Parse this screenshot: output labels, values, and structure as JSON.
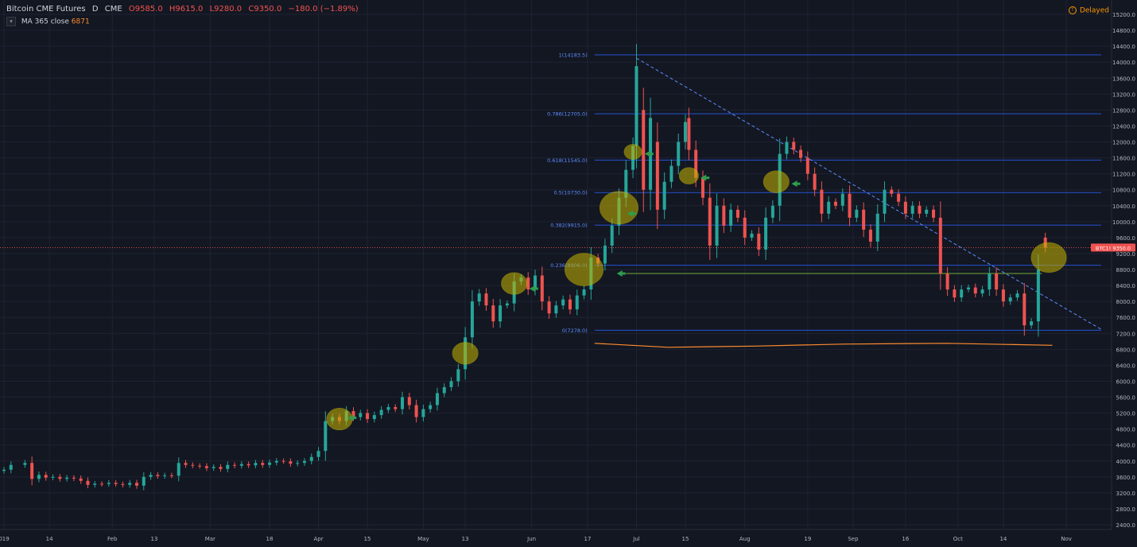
{
  "header": {
    "symbol": "Bitcoin CME Futures",
    "interval": "D",
    "exchange": "CME",
    "open": "O9585.0",
    "high": "H9615.0",
    "low": "L9280.0",
    "close": "C9350.0",
    "change": "−180.0 (−1.89%)"
  },
  "indicator": {
    "collapse_icon": "chevron-down",
    "name": "MA",
    "params": "365 close",
    "value": "6871"
  },
  "status": {
    "label": "Delayed",
    "icon": "info-icon"
  },
  "price_tag": {
    "symbol": "BTC1!",
    "value": "9350.0"
  },
  "chart_data": {
    "type": "candlestick",
    "title": "Bitcoin CME Futures",
    "ylim": [
      2200,
      15400
    ],
    "y_ticks": [
      2400,
      2800,
      3200,
      3600,
      4000,
      4400,
      4800,
      5200,
      5600,
      6000,
      6400,
      6800,
      7200,
      7600,
      8000,
      8400,
      8800,
      9200,
      9600,
      10000,
      10400,
      10800,
      11200,
      11600,
      12000,
      12400,
      12800,
      13200,
      13600,
      14000,
      14400,
      14800,
      15200
    ],
    "x_ticks": [
      {
        "label": "019",
        "day": 0
      },
      {
        "label": "14",
        "day": 13
      },
      {
        "label": "Feb",
        "day": 31
      },
      {
        "label": "13",
        "day": 43
      },
      {
        "label": "Mar",
        "day": 59
      },
      {
        "label": "18",
        "day": 76
      },
      {
        "label": "Apr",
        "day": 90
      },
      {
        "label": "15",
        "day": 104
      },
      {
        "label": "May",
        "day": 120
      },
      {
        "label": "13",
        "day": 132
      },
      {
        "label": "Jun",
        "day": 151
      },
      {
        "label": "17",
        "day": 167
      },
      {
        "label": "Jul",
        "day": 181
      },
      {
        "label": "15",
        "day": 195
      },
      {
        "label": "Aug",
        "day": 212
      },
      {
        "label": "19",
        "day": 230
      },
      {
        "label": "Sep",
        "day": 243
      },
      {
        "label": "16",
        "day": 258
      },
      {
        "label": "Oct",
        "day": 273
      },
      {
        "label": "14",
        "day": 286
      },
      {
        "label": "Nov",
        "day": 304
      }
    ],
    "candles": [
      {
        "day": 0,
        "o": 3750,
        "c": 3780
      },
      {
        "day": 2,
        "o": 3780,
        "c": 3900
      },
      {
        "day": 6,
        "o": 3900,
        "c": 3950
      },
      {
        "day": 8,
        "o": 3950,
        "c": 3550
      },
      {
        "day": 10,
        "o": 3550,
        "c": 3650
      },
      {
        "day": 12,
        "o": 3650,
        "c": 3580
      },
      {
        "day": 14,
        "o": 3580,
        "c": 3600
      },
      {
        "day": 16,
        "o": 3600,
        "c": 3550
      },
      {
        "day": 18,
        "o": 3550,
        "c": 3580
      },
      {
        "day": 20,
        "o": 3580,
        "c": 3560
      },
      {
        "day": 22,
        "o": 3560,
        "c": 3500
      },
      {
        "day": 24,
        "o": 3500,
        "c": 3400
      },
      {
        "day": 26,
        "o": 3400,
        "c": 3430
      },
      {
        "day": 28,
        "o": 3430,
        "c": 3420
      },
      {
        "day": 30,
        "o": 3420,
        "c": 3450
      },
      {
        "day": 32,
        "o": 3450,
        "c": 3420
      },
      {
        "day": 34,
        "o": 3420,
        "c": 3400
      },
      {
        "day": 36,
        "o": 3400,
        "c": 3450
      },
      {
        "day": 38,
        "o": 3450,
        "c": 3380
      },
      {
        "day": 40,
        "o": 3380,
        "c": 3600
      },
      {
        "day": 42,
        "o": 3600,
        "c": 3650
      },
      {
        "day": 44,
        "o": 3650,
        "c": 3620
      },
      {
        "day": 46,
        "o": 3620,
        "c": 3640
      },
      {
        "day": 48,
        "o": 3640,
        "c": 3630
      },
      {
        "day": 50,
        "o": 3630,
        "c": 3950
      },
      {
        "day": 52,
        "o": 3950,
        "c": 3900
      },
      {
        "day": 54,
        "o": 3900,
        "c": 3880
      },
      {
        "day": 56,
        "o": 3880,
        "c": 3870
      },
      {
        "day": 58,
        "o": 3870,
        "c": 3820
      },
      {
        "day": 60,
        "o": 3820,
        "c": 3850
      },
      {
        "day": 62,
        "o": 3850,
        "c": 3800
      },
      {
        "day": 64,
        "o": 3800,
        "c": 3900
      },
      {
        "day": 66,
        "o": 3900,
        "c": 3880
      },
      {
        "day": 68,
        "o": 3880,
        "c": 3920
      },
      {
        "day": 70,
        "o": 3920,
        "c": 3890
      },
      {
        "day": 72,
        "o": 3890,
        "c": 3950
      },
      {
        "day": 74,
        "o": 3950,
        "c": 3900
      },
      {
        "day": 76,
        "o": 3900,
        "c": 3960
      },
      {
        "day": 78,
        "o": 3960,
        "c": 4000
      },
      {
        "day": 80,
        "o": 4000,
        "c": 3990
      },
      {
        "day": 82,
        "o": 3990,
        "c": 3930
      },
      {
        "day": 84,
        "o": 3930,
        "c": 3950
      },
      {
        "day": 86,
        "o": 3950,
        "c": 4000
      },
      {
        "day": 88,
        "o": 4000,
        "c": 4100
      },
      {
        "day": 90,
        "o": 4100,
        "c": 4250
      },
      {
        "day": 92,
        "o": 4250,
        "c": 5000
      },
      {
        "day": 94,
        "o": 5000,
        "c": 5100
      },
      {
        "day": 96,
        "o": 5100,
        "c": 5000
      },
      {
        "day": 98,
        "o": 5000,
        "c": 5250
      },
      {
        "day": 100,
        "o": 5250,
        "c": 5100
      },
      {
        "day": 102,
        "o": 5100,
        "c": 5200
      },
      {
        "day": 104,
        "o": 5200,
        "c": 5050
      },
      {
        "day": 106,
        "o": 5050,
        "c": 5150
      },
      {
        "day": 108,
        "o": 5150,
        "c": 5280
      },
      {
        "day": 110,
        "o": 5280,
        "c": 5350
      },
      {
        "day": 112,
        "o": 5350,
        "c": 5300
      },
      {
        "day": 114,
        "o": 5300,
        "c": 5600
      },
      {
        "day": 116,
        "o": 5600,
        "c": 5400
      },
      {
        "day": 118,
        "o": 5400,
        "c": 5100
      },
      {
        "day": 120,
        "o": 5100,
        "c": 5300
      },
      {
        "day": 122,
        "o": 5300,
        "c": 5400
      },
      {
        "day": 124,
        "o": 5400,
        "c": 5700
      },
      {
        "day": 126,
        "o": 5700,
        "c": 5850
      },
      {
        "day": 128,
        "o": 5850,
        "c": 6000
      },
      {
        "day": 130,
        "o": 6000,
        "c": 6300
      },
      {
        "day": 132,
        "o": 6300,
        "c": 7100
      },
      {
        "day": 134,
        "o": 7100,
        "c": 8000
      },
      {
        "day": 136,
        "o": 8000,
        "c": 8200
      },
      {
        "day": 138,
        "o": 8200,
        "c": 7900
      },
      {
        "day": 140,
        "o": 7900,
        "c": 7500
      },
      {
        "day": 142,
        "o": 7500,
        "c": 7900
      },
      {
        "day": 144,
        "o": 7900,
        "c": 7950
      },
      {
        "day": 146,
        "o": 7950,
        "c": 8500
      },
      {
        "day": 148,
        "o": 8500,
        "c": 8600
      },
      {
        "day": 150,
        "o": 8600,
        "c": 8300
      },
      {
        "day": 152,
        "o": 8300,
        "c": 8650
      },
      {
        "day": 154,
        "o": 8650,
        "c": 8000
      },
      {
        "day": 156,
        "o": 8000,
        "c": 7700
      },
      {
        "day": 158,
        "o": 7700,
        "c": 7900
      },
      {
        "day": 160,
        "o": 7900,
        "c": 8050
      },
      {
        "day": 162,
        "o": 8050,
        "c": 7800
      },
      {
        "day": 164,
        "o": 7800,
        "c": 8150
      },
      {
        "day": 166,
        "o": 8150,
        "c": 8300
      },
      {
        "day": 168,
        "o": 8300,
        "c": 9100
      },
      {
        "day": 170,
        "o": 9100,
        "c": 8950
      },
      {
        "day": 172,
        "o": 8950,
        "c": 9400
      },
      {
        "day": 174,
        "o": 9400,
        "c": 9900
      },
      {
        "day": 176,
        "o": 9900,
        "c": 10600
      },
      {
        "day": 178,
        "o": 10600,
        "c": 11300
      },
      {
        "day": 180,
        "o": 11300,
        "c": 11900
      },
      {
        "day": 181,
        "o": 11900,
        "c": 13900
      },
      {
        "day": 183,
        "o": 12800,
        "c": 10800
      },
      {
        "day": 185,
        "o": 10800,
        "c": 12600
      },
      {
        "day": 187,
        "o": 12000,
        "c": 10300
      },
      {
        "day": 189,
        "o": 10300,
        "c": 11000
      },
      {
        "day": 191,
        "o": 11000,
        "c": 11400
      },
      {
        "day": 193,
        "o": 11400,
        "c": 12000
      },
      {
        "day": 195,
        "o": 12000,
        "c": 12500
      },
      {
        "day": 196,
        "o": 12600,
        "c": 11800
      },
      {
        "day": 198,
        "o": 11800,
        "c": 11100
      },
      {
        "day": 200,
        "o": 11100,
        "c": 10600
      },
      {
        "day": 202,
        "o": 10600,
        "c": 9400
      },
      {
        "day": 204,
        "o": 9400,
        "c": 10400
      },
      {
        "day": 206,
        "o": 10400,
        "c": 9900
      },
      {
        "day": 208,
        "o": 9900,
        "c": 10300
      },
      {
        "day": 210,
        "o": 10300,
        "c": 10100
      },
      {
        "day": 212,
        "o": 10100,
        "c": 9600
      },
      {
        "day": 214,
        "o": 9600,
        "c": 9700
      },
      {
        "day": 216,
        "o": 9700,
        "c": 9300
      },
      {
        "day": 218,
        "o": 9300,
        "c": 10100
      },
      {
        "day": 220,
        "o": 10100,
        "c": 10400
      },
      {
        "day": 222,
        "o": 10400,
        "c": 11700
      },
      {
        "day": 224,
        "o": 11700,
        "c": 12000
      },
      {
        "day": 226,
        "o": 12000,
        "c": 11800
      },
      {
        "day": 228,
        "o": 11800,
        "c": 11600
      },
      {
        "day": 230,
        "o": 11600,
        "c": 11200
      },
      {
        "day": 232,
        "o": 11200,
        "c": 10800
      },
      {
        "day": 234,
        "o": 10800,
        "c": 10200
      },
      {
        "day": 236,
        "o": 10200,
        "c": 10500
      },
      {
        "day": 238,
        "o": 10500,
        "c": 10400
      },
      {
        "day": 240,
        "o": 10400,
        "c": 10700
      },
      {
        "day": 242,
        "o": 10700,
        "c": 10100
      },
      {
        "day": 244,
        "o": 10100,
        "c": 10300
      },
      {
        "day": 246,
        "o": 10300,
        "c": 9800
      },
      {
        "day": 248,
        "o": 9800,
        "c": 9500
      },
      {
        "day": 250,
        "o": 9500,
        "c": 10200
      },
      {
        "day": 252,
        "o": 10200,
        "c": 10800
      },
      {
        "day": 254,
        "o": 10800,
        "c": 10700
      },
      {
        "day": 256,
        "o": 10700,
        "c": 10500
      },
      {
        "day": 258,
        "o": 10500,
        "c": 10200
      },
      {
        "day": 260,
        "o": 10200,
        "c": 10400
      },
      {
        "day": 262,
        "o": 10400,
        "c": 10200
      },
      {
        "day": 264,
        "o": 10200,
        "c": 10300
      },
      {
        "day": 266,
        "o": 10300,
        "c": 10100
      },
      {
        "day": 268,
        "o": 10100,
        "c": 8700
      },
      {
        "day": 270,
        "o": 8700,
        "c": 8300
      },
      {
        "day": 272,
        "o": 8300,
        "c": 8100
      },
      {
        "day": 274,
        "o": 8100,
        "c": 8300
      },
      {
        "day": 276,
        "o": 8300,
        "c": 8350
      },
      {
        "day": 278,
        "o": 8350,
        "c": 8200
      },
      {
        "day": 280,
        "o": 8200,
        "c": 8300
      },
      {
        "day": 282,
        "o": 8300,
        "c": 8700
      },
      {
        "day": 284,
        "o": 8700,
        "c": 8300
      },
      {
        "day": 286,
        "o": 8300,
        "c": 8000
      },
      {
        "day": 288,
        "o": 8000,
        "c": 8100
      },
      {
        "day": 290,
        "o": 8100,
        "c": 8200
      },
      {
        "day": 292,
        "o": 8200,
        "c": 7400
      },
      {
        "day": 294,
        "o": 7400,
        "c": 7500
      },
      {
        "day": 296,
        "o": 7500,
        "c": 8800
      },
      {
        "day": 298,
        "o": 9600,
        "c": 9350
      }
    ],
    "ma365": {
      "label": "MA 365 close",
      "value": 6871,
      "from_day": 169,
      "to_day": 300,
      "points": [
        [
          169,
          6950
        ],
        [
          190,
          6850
        ],
        [
          215,
          6880
        ],
        [
          240,
          6930
        ],
        [
          270,
          6950
        ],
        [
          300,
          6900
        ]
      ]
    },
    "fibonacci": {
      "from_day": 169,
      "to_day": 314,
      "levels": [
        {
          "label": "1(14183.5)",
          "price": 14183.5
        },
        {
          "label": "0.786(12705.0)",
          "price": 12705.0
        },
        {
          "label": "0.618(11545.0)",
          "price": 11545.0
        },
        {
          "label": "0.5(10730.0)",
          "price": 10730.0
        },
        {
          "label": "0.382(9915.0)",
          "price": 9915.0
        },
        {
          "label": "0.236(8906.0)",
          "price": 8906.0
        },
        {
          "label": "0(7278.0)",
          "price": 7278.0
        }
      ]
    },
    "trendline": {
      "from": [
        181,
        14100
      ],
      "to": [
        314,
        7300
      ]
    },
    "support_line": {
      "from_day": 178,
      "to_day": 297,
      "price": 8700
    },
    "current_price_line": 9350,
    "highlight_circles": [
      [
        96,
        5050
      ],
      [
        132,
        6700
      ],
      [
        146,
        8450
      ],
      [
        166,
        8800
      ],
      [
        176,
        10350
      ],
      [
        180,
        11750
      ],
      [
        196,
        11150
      ],
      [
        221,
        11000
      ],
      [
        299,
        9100
      ]
    ],
    "arrows": [
      [
        97,
        5080
      ],
      [
        149,
        8320
      ],
      [
        174,
        8700
      ],
      [
        177,
        10200
      ],
      [
        182,
        11700
      ],
      [
        198,
        11100
      ],
      [
        224,
        10950
      ]
    ],
    "colors": {
      "background": "#131722",
      "grid": "#1f2333",
      "up": "#26a69a",
      "down": "#ef5350",
      "fib": "#2962ff",
      "ma": "#ff8c2f",
      "circle": "#c5b400",
      "arrow": "#2e9e4e",
      "support": "#6fae3a"
    },
    "last_price": {
      "value": 9350.0
    }
  }
}
